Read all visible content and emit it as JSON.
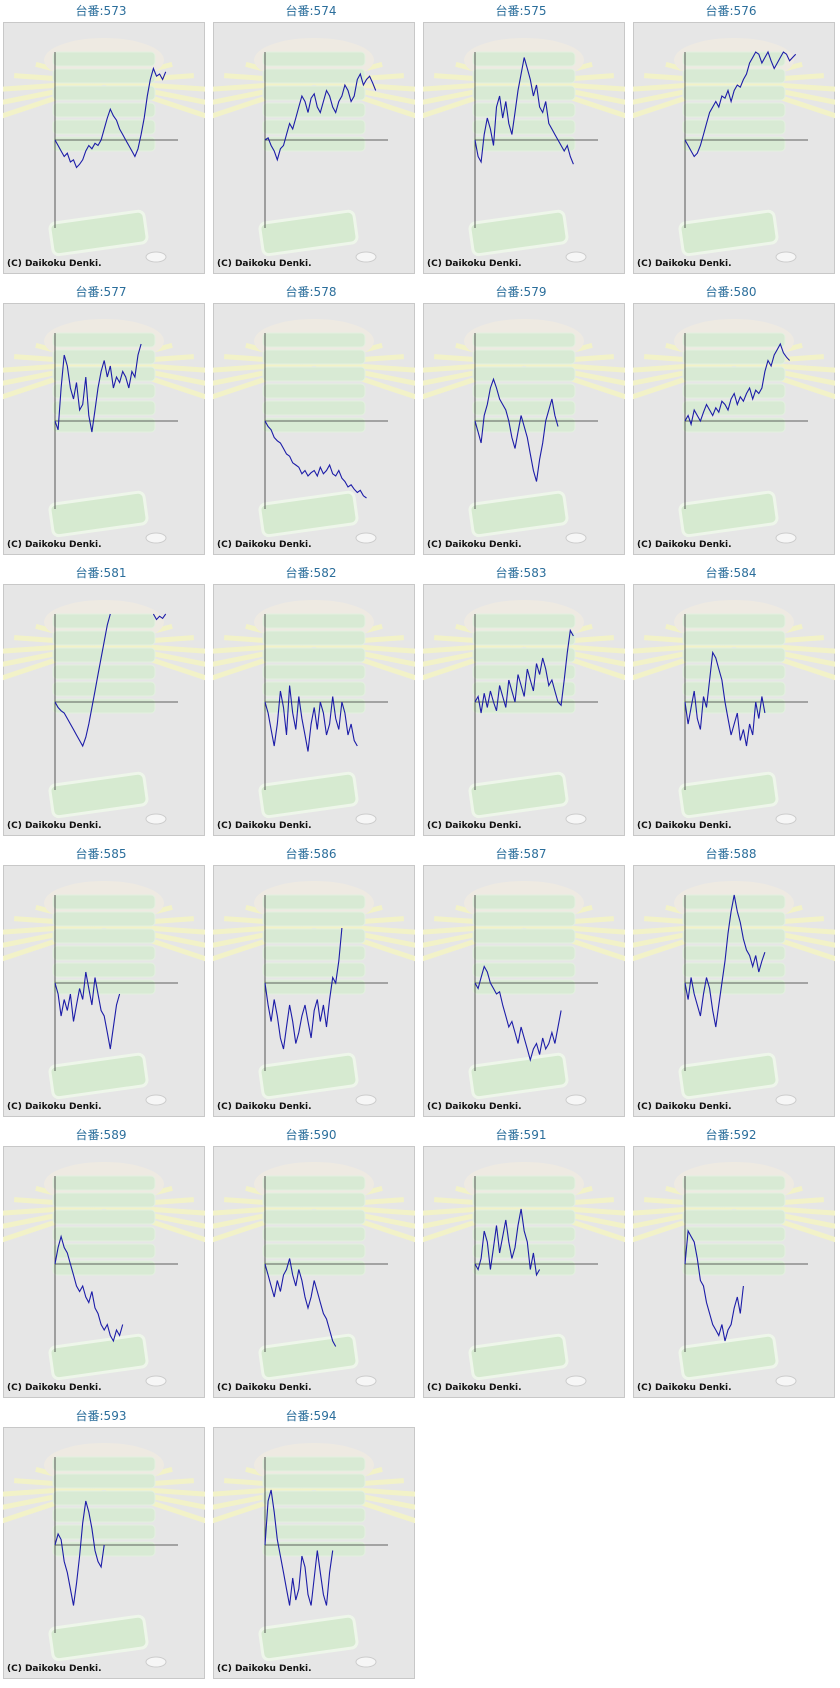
{
  "chart_data": [
    {
      "type": "line",
      "title": "台番:573",
      "source": "(C) Daikoku Denki.",
      "color": "#1c1ca8",
      "xlim": [
        0,
        40
      ],
      "ylim": [
        -80,
        80
      ],
      "values": [
        0,
        -5,
        -10,
        -15,
        -12,
        -20,
        -18,
        -25,
        -22,
        -18,
        -10,
        -5,
        -8,
        -3,
        -5,
        0,
        10,
        20,
        28,
        22,
        18,
        10,
        5,
        0,
        -5,
        -10,
        -15,
        -8,
        5,
        20,
        40,
        55,
        65,
        58,
        60,
        55,
        62
      ]
    },
    {
      "type": "line",
      "title": "台番:574",
      "source": "(C) Daikoku Denki.",
      "color": "#1c1ca8",
      "xlim": [
        0,
        40
      ],
      "ylim": [
        -80,
        80
      ],
      "values": [
        0,
        2,
        -5,
        -10,
        -18,
        -8,
        -5,
        5,
        15,
        10,
        20,
        30,
        40,
        35,
        25,
        38,
        42,
        30,
        25,
        35,
        45,
        40,
        30,
        25,
        35,
        40,
        50,
        45,
        35,
        40,
        55,
        60,
        50,
        55,
        58,
        52,
        45
      ]
    },
    {
      "type": "line",
      "title": "台番:575",
      "source": "(C) Daikoku Denki.",
      "color": "#1c1ca8",
      "xlim": [
        0,
        40
      ],
      "ylim": [
        -80,
        80
      ],
      "values": [
        0,
        -15,
        -20,
        5,
        20,
        10,
        -5,
        30,
        40,
        20,
        35,
        15,
        5,
        25,
        45,
        60,
        75,
        65,
        55,
        40,
        50,
        30,
        25,
        35,
        15,
        10,
        5,
        0,
        -5,
        -10,
        -5,
        -15,
        -22
      ]
    },
    {
      "type": "line",
      "title": "台番:576",
      "source": "(C) Daikoku Denki.",
      "color": "#1c1ca8",
      "xlim": [
        0,
        40
      ],
      "ylim": [
        -80,
        80
      ],
      "values": [
        0,
        -5,
        -10,
        -15,
        -12,
        -5,
        5,
        15,
        25,
        30,
        35,
        30,
        40,
        38,
        45,
        35,
        45,
        50,
        48,
        55,
        60,
        70,
        75,
        80,
        78,
        70,
        75,
        80,
        72,
        65,
        70,
        75,
        80,
        78,
        72,
        75,
        78
      ]
    },
    {
      "type": "line",
      "title": "台番:577",
      "source": "(C) Daikoku Denki.",
      "color": "#1c1ca8",
      "xlim": [
        0,
        40
      ],
      "ylim": [
        -80,
        80
      ],
      "values": [
        0,
        -8,
        30,
        60,
        50,
        30,
        20,
        35,
        10,
        15,
        40,
        5,
        -10,
        10,
        30,
        45,
        55,
        40,
        50,
        30,
        40,
        35,
        45,
        40,
        30,
        45,
        40,
        60,
        70
      ]
    },
    {
      "type": "line",
      "title": "台番:578",
      "source": "(C) Daikoku Denki.",
      "color": "#1c1ca8",
      "xlim": [
        0,
        40
      ],
      "ylim": [
        -80,
        80
      ],
      "values": [
        0,
        -5,
        -8,
        -15,
        -18,
        -20,
        -25,
        -30,
        -32,
        -38,
        -40,
        -42,
        -48,
        -45,
        -50,
        -47,
        -45,
        -50,
        -42,
        -48,
        -45,
        -40,
        -48,
        -50,
        -45,
        -52,
        -55,
        -60,
        -58,
        -62,
        -65,
        -63,
        -68,
        -70
      ]
    },
    {
      "type": "line",
      "title": "台番:579",
      "source": "(C) Daikoku Denki.",
      "color": "#1c1ca8",
      "xlim": [
        0,
        40
      ],
      "ylim": [
        -80,
        80
      ],
      "values": [
        0,
        -10,
        -20,
        5,
        15,
        30,
        38,
        30,
        20,
        15,
        10,
        0,
        -15,
        -25,
        -10,
        5,
        -5,
        -15,
        -30,
        -45,
        -55,
        -35,
        -20,
        0,
        10,
        20,
        5,
        -5
      ]
    },
    {
      "type": "line",
      "title": "台番:580",
      "source": "(C) Daikoku Denki.",
      "color": "#1c1ca8",
      "xlim": [
        0,
        40
      ],
      "ylim": [
        -80,
        80
      ],
      "values": [
        0,
        5,
        -3,
        10,
        5,
        0,
        8,
        15,
        10,
        5,
        12,
        8,
        18,
        15,
        10,
        20,
        25,
        15,
        22,
        18,
        25,
        30,
        20,
        28,
        25,
        30,
        45,
        55,
        50,
        60,
        65,
        70,
        62,
        58,
        55
      ]
    },
    {
      "type": "line",
      "title": "台番:581",
      "source": "(C) Daikoku Denki.",
      "color": "#1c1ca8",
      "xlim": [
        0,
        40
      ],
      "ylim": [
        -80,
        80
      ],
      "values": [
        0,
        -5,
        -8,
        -10,
        -15,
        -20,
        -25,
        -30,
        -35,
        -40,
        -32,
        -20,
        -5,
        10,
        25,
        40,
        55,
        70,
        80,
        null,
        null,
        null,
        null,
        null,
        null,
        null,
        null,
        null,
        null,
        null,
        null,
        null,
        80,
        75,
        78,
        76,
        80
      ]
    },
    {
      "type": "line",
      "title": "台番:582",
      "source": "(C) Daikoku Denki.",
      "color": "#1c1ca8",
      "xlim": [
        0,
        40
      ],
      "ylim": [
        -80,
        80
      ],
      "values": [
        0,
        -10,
        -25,
        -40,
        -20,
        10,
        -5,
        -30,
        15,
        -10,
        -25,
        5,
        -15,
        -30,
        -45,
        -20,
        -5,
        -25,
        0,
        -10,
        -30,
        -20,
        5,
        -15,
        -25,
        0,
        -10,
        -30,
        -20,
        -35,
        -40
      ]
    },
    {
      "type": "line",
      "title": "台番:583",
      "source": "(C) Daikoku Denki.",
      "color": "#1c1ca8",
      "xlim": [
        0,
        40
      ],
      "ylim": [
        -80,
        80
      ],
      "values": [
        0,
        5,
        -10,
        8,
        -5,
        10,
        0,
        -8,
        15,
        5,
        -5,
        20,
        10,
        0,
        25,
        15,
        5,
        30,
        20,
        10,
        35,
        25,
        40,
        30,
        15,
        20,
        10,
        0,
        -3,
        20,
        45,
        65,
        60
      ]
    },
    {
      "type": "line",
      "title": "台番:584",
      "source": "(C) Daikoku Denki.",
      "color": "#1c1ca8",
      "xlim": [
        0,
        40
      ],
      "ylim": [
        -80,
        80
      ],
      "values": [
        0,
        -20,
        -5,
        10,
        -15,
        -25,
        5,
        -5,
        20,
        45,
        40,
        30,
        20,
        0,
        -15,
        -30,
        -20,
        -10,
        -35,
        -25,
        -40,
        -20,
        -30,
        0,
        -15,
        5,
        -10
      ]
    },
    {
      "type": "line",
      "title": "台番:585",
      "source": "(C) Daikoku Denki.",
      "color": "#1c1ca8",
      "xlim": [
        0,
        40
      ],
      "ylim": [
        -80,
        80
      ],
      "values": [
        0,
        -10,
        -30,
        -15,
        -25,
        -10,
        -35,
        -20,
        -5,
        -15,
        10,
        -5,
        -20,
        5,
        -10,
        -25,
        -30,
        -45,
        -60,
        -40,
        -20,
        -10
      ]
    },
    {
      "type": "line",
      "title": "台番:586",
      "source": "(C) Daikoku Denki.",
      "color": "#1c1ca8",
      "xlim": [
        0,
        40
      ],
      "ylim": [
        -80,
        80
      ],
      "values": [
        0,
        -20,
        -35,
        -15,
        -30,
        -50,
        -60,
        -40,
        -20,
        -35,
        -55,
        -45,
        -30,
        -20,
        -35,
        -50,
        -25,
        -15,
        -35,
        -20,
        -40,
        -15,
        5,
        0,
        20,
        50
      ]
    },
    {
      "type": "line",
      "title": "台番:587",
      "source": "(C) Daikoku Denki.",
      "color": "#1c1ca8",
      "xlim": [
        0,
        40
      ],
      "ylim": [
        -80,
        80
      ],
      "values": [
        0,
        -5,
        5,
        15,
        10,
        0,
        -5,
        -10,
        -8,
        -20,
        -30,
        -40,
        -35,
        -45,
        -55,
        -40,
        -50,
        -60,
        -70,
        -60,
        -55,
        -65,
        -50,
        -60,
        -55,
        -45,
        -55,
        -40,
        -25
      ]
    },
    {
      "type": "line",
      "title": "台番:588",
      "source": "(C) Daikoku Denki.",
      "color": "#1c1ca8",
      "xlim": [
        0,
        40
      ],
      "ylim": [
        -80,
        80
      ],
      "values": [
        0,
        -15,
        5,
        -10,
        -20,
        -30,
        -10,
        5,
        -5,
        -25,
        -40,
        -20,
        0,
        20,
        45,
        65,
        80,
        65,
        55,
        40,
        30,
        25,
        15,
        25,
        10,
        20,
        28
      ]
    },
    {
      "type": "line",
      "title": "台番:589",
      "source": "(C) Daikoku Denki.",
      "color": "#1c1ca8",
      "xlim": [
        0,
        40
      ],
      "ylim": [
        -80,
        80
      ],
      "values": [
        0,
        15,
        25,
        15,
        10,
        0,
        -10,
        -20,
        -25,
        -20,
        -30,
        -35,
        -25,
        -40,
        -45,
        -55,
        -60,
        -55,
        -65,
        -70,
        -60,
        -65,
        -55
      ]
    },
    {
      "type": "line",
      "title": "台番:590",
      "source": "(C) Daikoku Denki.",
      "color": "#1c1ca8",
      "xlim": [
        0,
        40
      ],
      "ylim": [
        -80,
        80
      ],
      "values": [
        0,
        -10,
        -20,
        -30,
        -15,
        -25,
        -10,
        -5,
        5,
        -10,
        -20,
        -5,
        -15,
        -30,
        -40,
        -30,
        -15,
        -25,
        -35,
        -45,
        -50,
        -60,
        -70,
        -75
      ]
    },
    {
      "type": "line",
      "title": "台番:591",
      "source": "(C) Daikoku Denki.",
      "color": "#1c1ca8",
      "xlim": [
        0,
        40
      ],
      "ylim": [
        -80,
        80
      ],
      "values": [
        0,
        -5,
        5,
        30,
        20,
        -5,
        15,
        35,
        10,
        25,
        40,
        20,
        5,
        15,
        35,
        50,
        30,
        20,
        -5,
        10,
        -10,
        -5
      ]
    },
    {
      "type": "line",
      "title": "台番:592",
      "source": "(C) Daikoku Denki.",
      "color": "#1c1ca8",
      "xlim": [
        0,
        40
      ],
      "ylim": [
        -80,
        80
      ],
      "values": [
        0,
        30,
        25,
        20,
        5,
        -15,
        -20,
        -35,
        -45,
        -55,
        -60,
        -65,
        -55,
        -70,
        -60,
        -55,
        -40,
        -30,
        -45,
        -20
      ]
    },
    {
      "type": "line",
      "title": "台番:593",
      "source": "(C) Daikoku Denki.",
      "color": "#1c1ca8",
      "xlim": [
        0,
        40
      ],
      "ylim": [
        -80,
        80
      ],
      "values": [
        0,
        10,
        5,
        -15,
        -25,
        -40,
        -55,
        -35,
        -10,
        20,
        40,
        30,
        15,
        -5,
        -15,
        -20,
        0
      ]
    },
    {
      "type": "line",
      "title": "台番:594",
      "source": "(C) Daikoku Denki.",
      "color": "#1c1ca8",
      "xlim": [
        0,
        40
      ],
      "ylim": [
        -80,
        80
      ],
      "values": [
        0,
        40,
        50,
        30,
        5,
        -10,
        -25,
        -40,
        -55,
        -30,
        -50,
        -40,
        -10,
        -20,
        -45,
        -55,
        -30,
        -5,
        -25,
        -45,
        -55,
        -25,
        -5
      ]
    }
  ]
}
